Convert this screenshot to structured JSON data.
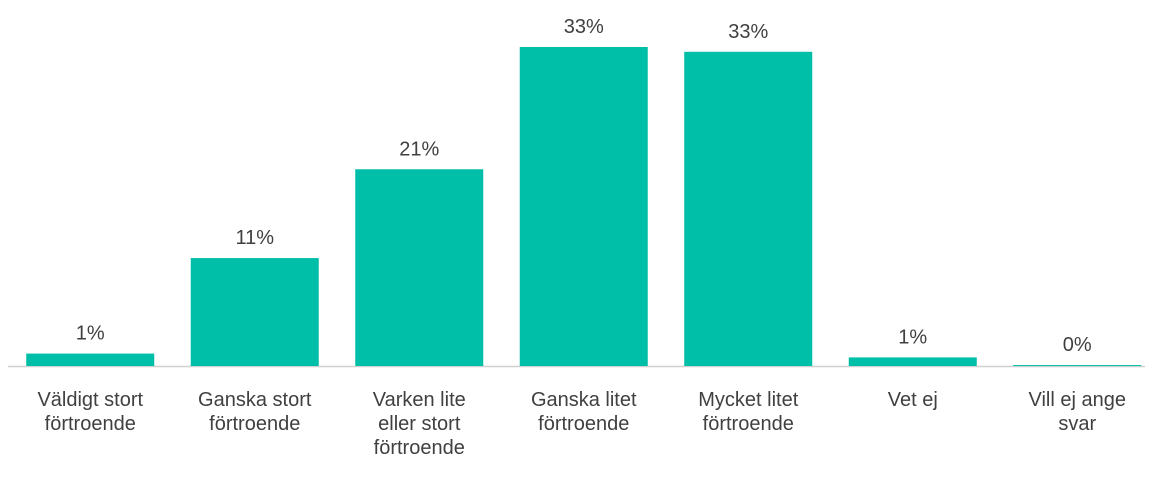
{
  "chart_data": {
    "type": "bar",
    "categories": [
      "Väldigt stort\nförtroende",
      "Ganska stort\nförtroende",
      "Varken lite\neller stort\nförtroende",
      "Ganska litet\nförtroende",
      "Mycket litet\nförtroende",
      "Vet ej",
      "Vill ej ange\nsvar"
    ],
    "values": [
      1.3,
      11.3,
      20.6,
      33.4,
      32.9,
      0.9,
      0.1
    ],
    "value_labels": [
      "1%",
      "11%",
      "21%",
      "33%",
      "33%",
      "1%",
      "0%"
    ],
    "color": "#00bfa8"
  }
}
